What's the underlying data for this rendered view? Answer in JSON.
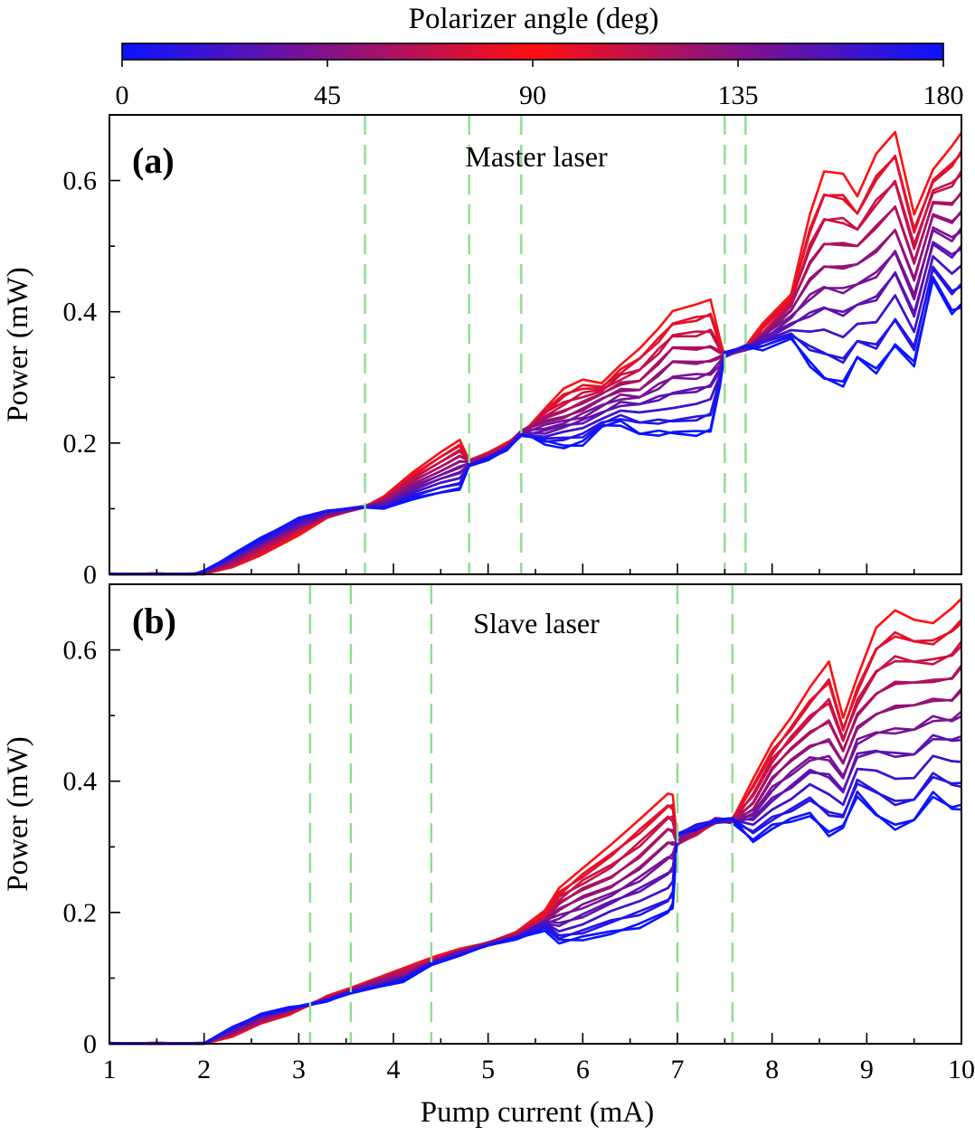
{
  "chart_data": {
    "type": "line",
    "colorbar": {
      "label": "Polarizer angle (deg)",
      "ticks": [
        0,
        45,
        90,
        135,
        180
      ],
      "range": [
        0,
        180
      ],
      "colors": {
        "0": "#0a14ff",
        "90": "#ff1010",
        "180": "#0a14ff"
      }
    },
    "xlabel": "Pump current (mA)",
    "xlim": [
      1,
      10
    ],
    "xticks": [
      1,
      2,
      3,
      4,
      5,
      6,
      7,
      8,
      9,
      10
    ],
    "angles": [
      0,
      10,
      20,
      30,
      40,
      50,
      60,
      70,
      80,
      90,
      100,
      110,
      120,
      130,
      140,
      150,
      160,
      170,
      180
    ],
    "panels": [
      {
        "letter": "(a)",
        "title": "Master laser",
        "ylabel": "Power (mW)",
        "ylim": [
          0,
          0.7
        ],
        "yticks": [
          0,
          0.2,
          0.4,
          0.6
        ],
        "ytick_labels": [
          "0",
          "0.2",
          "0.4",
          "0.6"
        ],
        "show_xtick_labels": false,
        "vlines": [
          3.7,
          4.8,
          5.35,
          7.5,
          7.72
        ],
        "x": [
          1.0,
          1.5,
          1.9,
          2.0,
          2.3,
          2.6,
          3.0,
          3.3,
          3.7,
          3.9,
          4.2,
          4.5,
          4.7,
          4.8,
          5.0,
          5.2,
          5.35,
          5.6,
          5.8,
          6.0,
          6.2,
          6.4,
          6.6,
          6.8,
          6.95,
          7.2,
          7.35,
          7.45,
          7.5,
          7.72,
          7.9,
          8.2,
          8.4,
          8.55,
          8.75,
          8.9,
          9.1,
          9.3,
          9.5,
          9.7,
          9.9,
          10.0
        ],
        "envelope_high": [
          0.0,
          0.0,
          0.0,
          0.0,
          0.01,
          0.03,
          0.06,
          0.085,
          0.103,
          0.12,
          0.155,
          0.185,
          0.205,
          0.175,
          0.185,
          0.2,
          0.215,
          0.255,
          0.28,
          0.295,
          0.295,
          0.32,
          0.34,
          0.375,
          0.405,
          0.41,
          0.415,
          0.36,
          0.335,
          0.345,
          0.38,
          0.43,
          0.55,
          0.61,
          0.61,
          0.58,
          0.64,
          0.67,
          0.55,
          0.62,
          0.65,
          0.67
        ],
        "envelope_low": [
          0.0,
          0.0,
          0.0,
          0.005,
          0.03,
          0.055,
          0.085,
          0.097,
          0.103,
          0.1,
          0.115,
          0.125,
          0.13,
          0.165,
          0.175,
          0.19,
          0.215,
          0.2,
          0.195,
          0.2,
          0.225,
          0.23,
          0.215,
          0.215,
          0.215,
          0.215,
          0.22,
          0.29,
          0.335,
          0.345,
          0.345,
          0.36,
          0.32,
          0.3,
          0.29,
          0.33,
          0.31,
          0.35,
          0.32,
          0.45,
          0.4,
          0.41
        ]
      },
      {
        "letter": "(b)",
        "title": "Slave laser",
        "ylabel": "Power (mW)",
        "ylim": [
          0,
          0.7
        ],
        "yticks": [
          0,
          0.2,
          0.4,
          0.6
        ],
        "ytick_labels": [
          "0",
          "0.2",
          "0.4",
          "0.6"
        ],
        "show_xtick_labels": true,
        "vlines": [
          3.12,
          3.55,
          4.4,
          7.0,
          7.58
        ],
        "x": [
          1.0,
          1.5,
          2.0,
          2.3,
          2.6,
          2.9,
          3.12,
          3.3,
          3.55,
          3.8,
          4.1,
          4.4,
          4.7,
          5.0,
          5.3,
          5.6,
          5.75,
          6.0,
          6.3,
          6.6,
          6.9,
          6.95,
          7.0,
          7.2,
          7.4,
          7.58,
          7.8,
          8.0,
          8.2,
          8.4,
          8.6,
          8.75,
          8.9,
          9.1,
          9.3,
          9.5,
          9.7,
          9.9,
          10.0
        ],
        "envelope_high": [
          0.0,
          0.0,
          0.0,
          0.01,
          0.03,
          0.045,
          0.06,
          0.072,
          0.085,
          0.1,
          0.115,
          0.13,
          0.145,
          0.155,
          0.17,
          0.2,
          0.24,
          0.27,
          0.3,
          0.34,
          0.385,
          0.38,
          0.3,
          0.32,
          0.34,
          0.34,
          0.4,
          0.46,
          0.5,
          0.54,
          0.58,
          0.5,
          0.56,
          0.63,
          0.66,
          0.65,
          0.64,
          0.66,
          0.68
        ],
        "envelope_low": [
          0.0,
          0.0,
          0.0,
          0.025,
          0.045,
          0.055,
          0.06,
          0.065,
          0.078,
          0.085,
          0.095,
          0.12,
          0.135,
          0.15,
          0.16,
          0.175,
          0.155,
          0.16,
          0.17,
          0.18,
          0.2,
          0.21,
          0.32,
          0.33,
          0.34,
          0.34,
          0.31,
          0.33,
          0.34,
          0.35,
          0.32,
          0.33,
          0.38,
          0.35,
          0.33,
          0.34,
          0.38,
          0.36,
          0.36
        ]
      }
    ]
  }
}
